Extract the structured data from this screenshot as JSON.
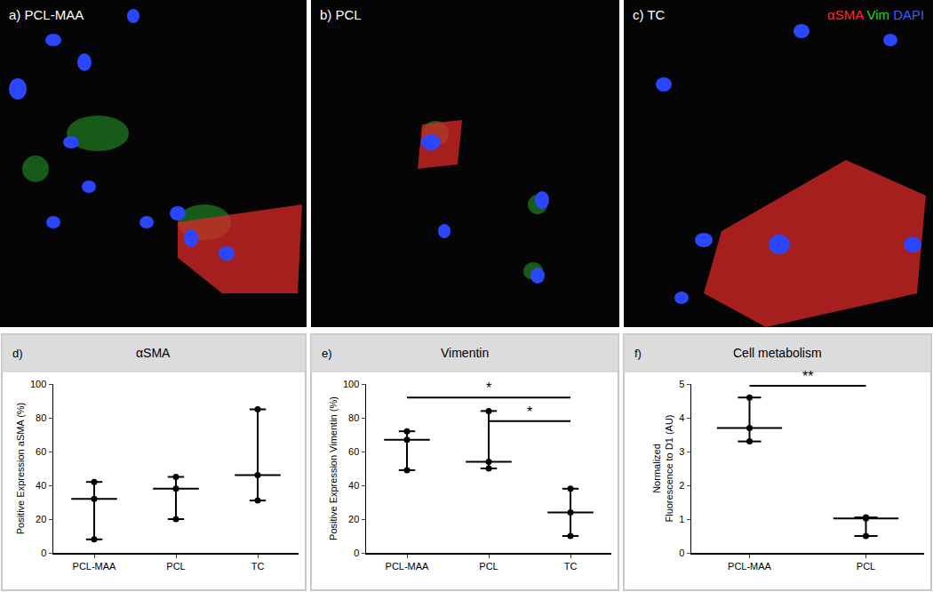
{
  "images": [
    {
      "label": "a) PCL-MAA"
    },
    {
      "label": "b) PCL"
    },
    {
      "label": "c) TC"
    }
  ],
  "stain_legend": [
    {
      "text": "αSMA",
      "color": "#ff2a2a"
    },
    {
      "text": "Vim",
      "color": "#27d827"
    },
    {
      "text": "DAPI",
      "color": "#3a5cff"
    }
  ],
  "chart_data": [
    {
      "type": "scatter",
      "panel": "d)",
      "title": "αSMA",
      "categories": [
        "PCL-MAA",
        "PCL",
        "TC"
      ],
      "values": [
        [
          8,
          32,
          42
        ],
        [
          20,
          38,
          45
        ],
        [
          31,
          46,
          85
        ]
      ],
      "ylabel": "Positive Expression aSMA (%)",
      "ylim": [
        0,
        100
      ],
      "yticks": [
        0,
        20,
        40,
        60,
        80,
        100
      ],
      "grid": false,
      "color": "#000000",
      "marker": "circle",
      "significance": []
    },
    {
      "type": "scatter",
      "panel": "e)",
      "title": "Vimentin",
      "categories": [
        "PCL-MAA",
        "PCL",
        "TC"
      ],
      "values": [
        [
          49,
          67,
          72
        ],
        [
          50,
          54,
          84
        ],
        [
          10,
          24,
          38
        ]
      ],
      "ylabel": "Positive Expression Vimentin (%)",
      "ylim": [
        0,
        100
      ],
      "yticks": [
        0,
        20,
        40,
        60,
        80,
        100
      ],
      "grid": false,
      "color": "#000000",
      "marker": "circle",
      "significance": [
        {
          "from": "PCL-MAA",
          "to": "TC",
          "y": 92,
          "label": "*"
        },
        {
          "from": "PCL",
          "to": "TC",
          "y": 78,
          "label": "*"
        }
      ]
    },
    {
      "type": "scatter",
      "panel": "f)",
      "title": "Cell metabolism",
      "categories": [
        "PCL-MAA",
        "PCL"
      ],
      "values": [
        [
          3.3,
          3.7,
          4.6
        ],
        [
          0.5,
          1.02,
          1.05
        ]
      ],
      "ylabel": "Normalized\nFluorescence to D1 (AU)",
      "ylim": [
        0,
        5
      ],
      "yticks": [
        0,
        1,
        2,
        3,
        4,
        5
      ],
      "grid": false,
      "color": "#000000",
      "marker": "circle",
      "significance": [
        {
          "from": "PCL-MAA",
          "to": "PCL",
          "y": 4.95,
          "label": "**"
        }
      ]
    }
  ]
}
